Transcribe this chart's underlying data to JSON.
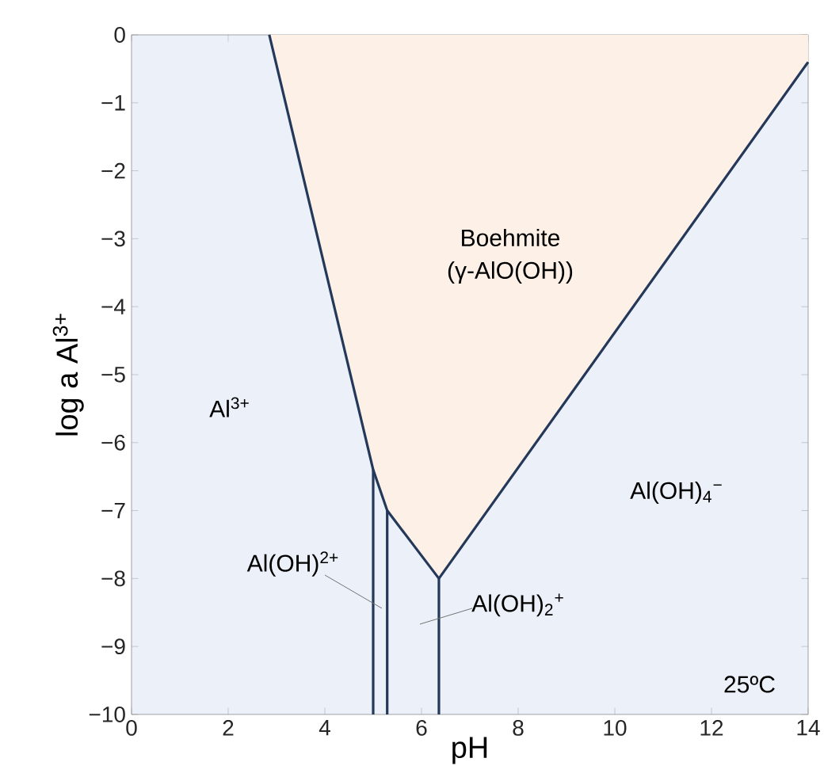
{
  "chart_data": {
    "type": "line",
    "xlabel": "pH",
    "ylabel": "log a Al$^{3+}$",
    "xlim": [
      0,
      14
    ],
    "ylim": [
      -10,
      0
    ],
    "xticks": [
      0,
      2,
      4,
      6,
      8,
      10,
      12,
      14
    ],
    "yticks": [
      {
        "value": -10,
        "label": "−10"
      },
      {
        "value": -9,
        "label": "−9"
      },
      {
        "value": -8,
        "label": "−8"
      },
      {
        "value": -7,
        "label": "−7"
      },
      {
        "value": -6,
        "label": "−6"
      },
      {
        "value": -5,
        "label": "−5"
      },
      {
        "value": -4,
        "label": "−4"
      },
      {
        "value": -3,
        "label": "−3"
      },
      {
        "value": -2,
        "label": "−2"
      },
      {
        "value": -1,
        "label": "−1"
      },
      0
    ],
    "grid": false,
    "marker": "none",
    "line_style": "solid",
    "series": [
      {
        "color": "#24385a",
        "x": [
          2.85,
          5.0,
          5.29,
          6.36,
          14
        ],
        "values": [
          0,
          -6.4,
          -7.0,
          -8.0,
          -0.4
        ],
        "lower": [
          0,
          -6.4,
          -7.0,
          -8.0,
          -0.4
        ],
        "upper": [
          0,
          0,
          0,
          0,
          0
        ]
      },
      {
        "color": "#24385a",
        "x": [
          5.0,
          5.0
        ],
        "values": [
          -10,
          -6.4
        ]
      },
      {
        "color": "#24385a",
        "x": [
          5.29,
          5.29
        ],
        "values": [
          -10,
          -7.0
        ]
      },
      {
        "color": "#24385a",
        "x": [
          6.36,
          6.36
        ],
        "values": [
          -10,
          -8.0
        ]
      }
    ],
    "annotations": [
      "Boehmite",
      "(γ-AlO(OH))",
      "Al$^{3+}$",
      "Al(OH)$_{4}$$^{−}$",
      "Al(OH)$^{2+}$",
      "Al(OH)$_{2}$$^{+}$",
      "25ºC"
    ]
  }
}
